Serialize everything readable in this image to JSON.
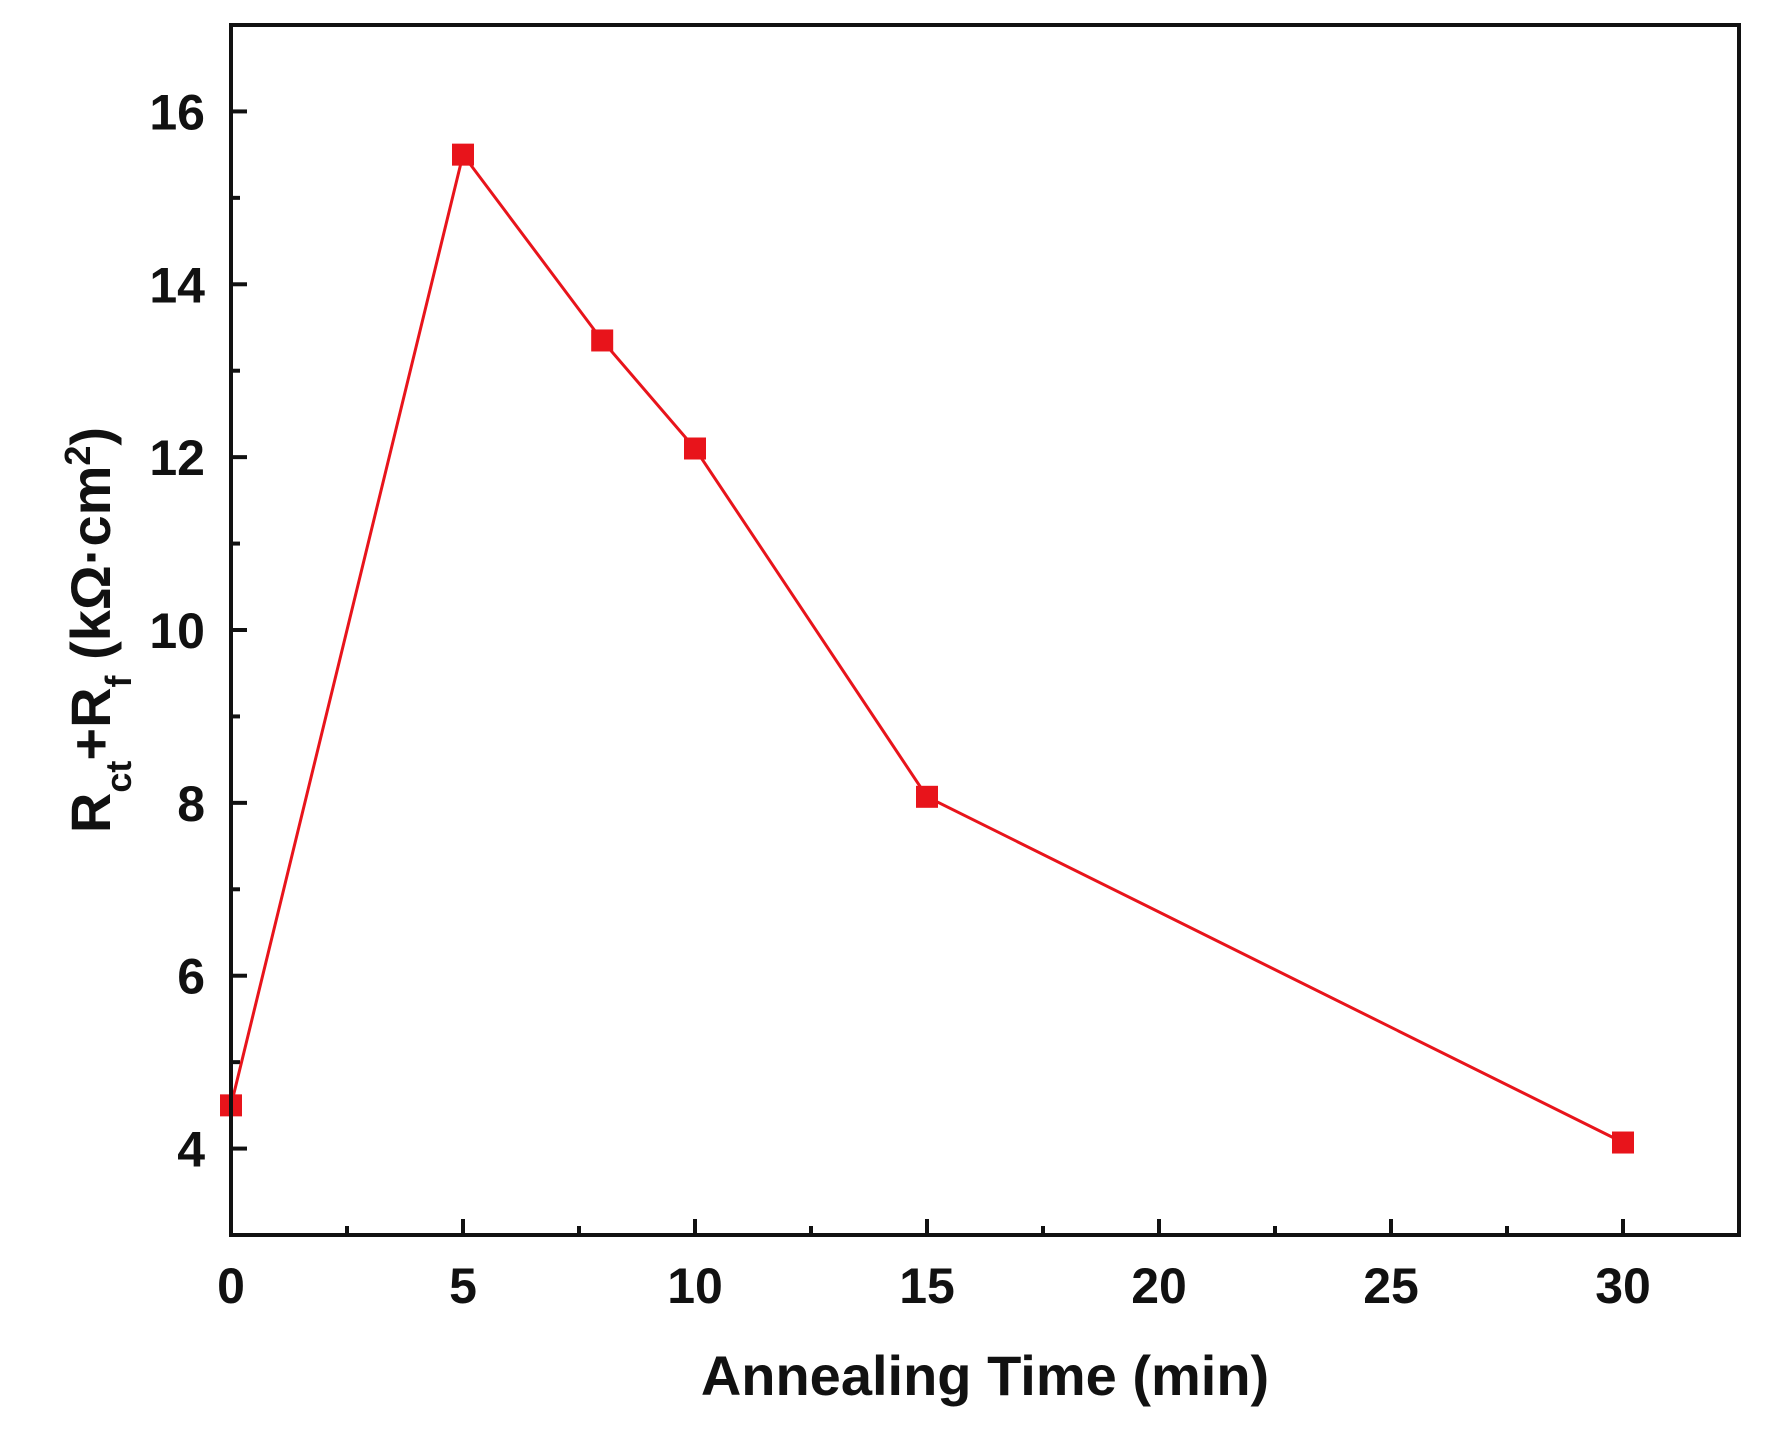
{
  "chart_data": {
    "type": "line",
    "title": "",
    "xlabel": "Annealing Time (min)",
    "ylabel": "Rct+Rf (kΩ·cm2)",
    "ylabel_parts": {
      "r1": "R",
      "sub1": "ct",
      "plus": "+R",
      "sub2": "f",
      "unit_open": " (kΩ·cm",
      "sup": "2",
      "unit_close": ")"
    },
    "xlim": [
      0,
      32.5
    ],
    "ylim": [
      3,
      17
    ],
    "x_ticks": [
      0,
      5,
      10,
      15,
      20,
      25,
      30
    ],
    "x_tick_labels": [
      "0",
      "5",
      "10",
      "15",
      "20",
      "25",
      "30"
    ],
    "y_ticks": [
      4,
      6,
      8,
      10,
      12,
      14,
      16
    ],
    "y_tick_labels": [
      "4",
      "6",
      "8",
      "10",
      "12",
      "14",
      "16"
    ],
    "grid": false,
    "series": [
      {
        "name": "Rct+Rf",
        "color": "#e8141b",
        "marker": "square",
        "x": [
          0,
          5,
          8,
          10,
          15,
          30
        ],
        "values": [
          4.5,
          15.5,
          13.35,
          12.1,
          8.07,
          4.07
        ]
      }
    ]
  }
}
